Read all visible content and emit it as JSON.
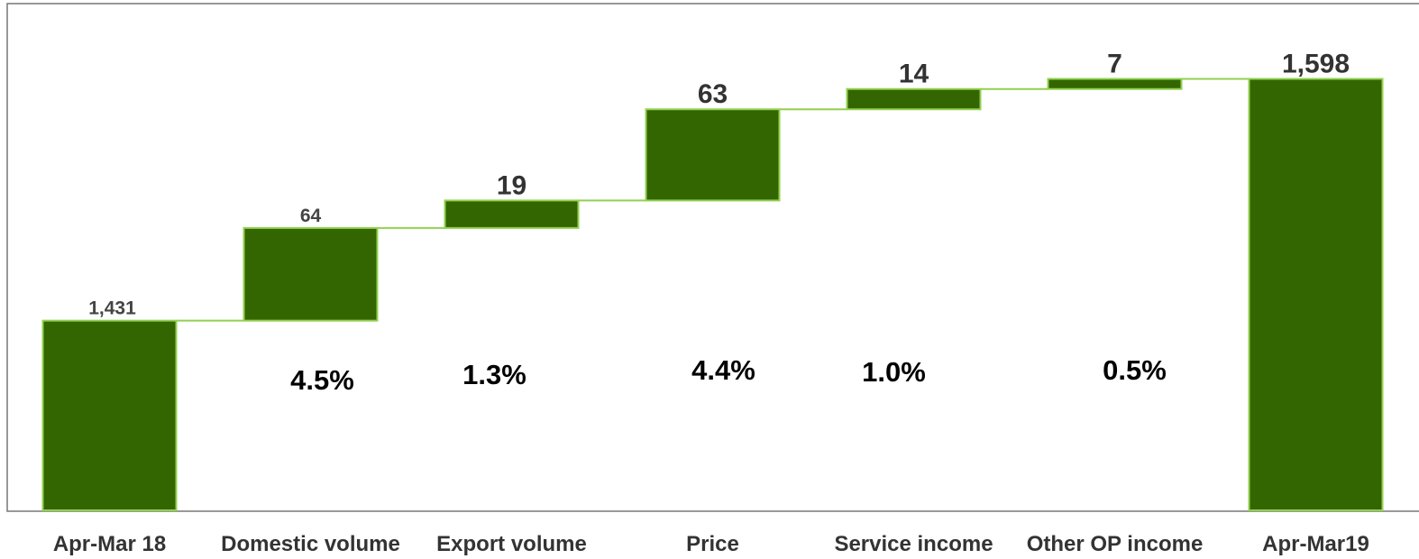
{
  "chart_data": {
    "type": "waterfall",
    "categories": [
      "Apr-Mar 18",
      "Domestic volume",
      "Export volume",
      "Price",
      "Service income",
      "Other OP income",
      "Apr-Mar19"
    ],
    "values": [
      1431,
      64,
      19,
      63,
      14,
      7,
      1598
    ],
    "value_labels": [
      "1,431",
      "64",
      "19",
      "63",
      "14",
      "7",
      "1,598"
    ],
    "measure": [
      "total",
      "relative",
      "relative",
      "relative",
      "relative",
      "relative",
      "total"
    ],
    "annotations": [
      null,
      "4.5%",
      "1.3%",
      "4.4%",
      "1.0%",
      "0.5%",
      null
    ],
    "color": "#336600",
    "edge_color": "#92d050",
    "ylim": [
      1300,
      1650
    ]
  }
}
